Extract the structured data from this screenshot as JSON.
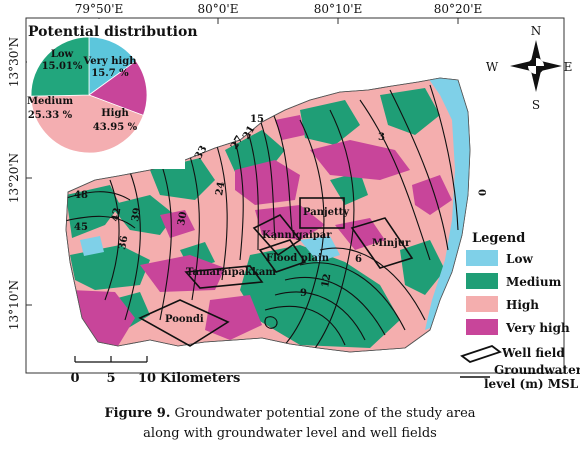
{
  "figure": {
    "caption_label": "Figure 9.",
    "caption_line1": " Groundwater potential zone of the study area",
    "caption_line2": "along with groundwater level and well fields"
  },
  "map": {
    "lon_ticks": [
      "79°50'E",
      "80°0'E",
      "80°10'E",
      "80°20'E"
    ],
    "lat_ticks": [
      "13°30'N",
      "13°20'N",
      "13°10'N"
    ],
    "well_fields": [
      "Panjetty",
      "Minjur",
      "Kannigaipar",
      "Flood plain",
      "Tamaraipakkam",
      "Poondi"
    ],
    "contour_labels": [
      "48",
      "45",
      "42",
      "39",
      "36",
      "30",
      "24",
      "21",
      "27",
      "33",
      "15",
      "12",
      "9",
      "6",
      "3",
      "0"
    ]
  },
  "pie": {
    "title": "Potential distribution",
    "slices": [
      {
        "name": "Low",
        "value": 15.01,
        "label": "15.01%",
        "color": "#5cc6dc"
      },
      {
        "name": "Very high",
        "value": 15.7,
        "label": "15.7 %",
        "color": "#c8459a"
      },
      {
        "name": "High",
        "value": 43.95,
        "label": "43.95 %",
        "color": "#f4aeb1"
      },
      {
        "name": "Medium",
        "value": 25.33,
        "label": "25.33 %",
        "color": "#22a67d"
      }
    ]
  },
  "legend": {
    "title": "Legend",
    "items": [
      {
        "label": "Low",
        "color": "#7fd0e8"
      },
      {
        "label": "Medium",
        "color": "#1f9e76"
      },
      {
        "label": "High",
        "color": "#f4aeae"
      },
      {
        "label": "Very high",
        "color": "#c8459a"
      }
    ],
    "well_label": "Well field",
    "gw_label1": "Groundwater",
    "gw_label2": "level (m) MSL"
  },
  "compass": {
    "n": "N",
    "s": "S",
    "e": "E",
    "w": "W"
  },
  "scalebar": {
    "ticks": [
      "0",
      "5",
      "10"
    ],
    "unit": "Kilometers"
  }
}
